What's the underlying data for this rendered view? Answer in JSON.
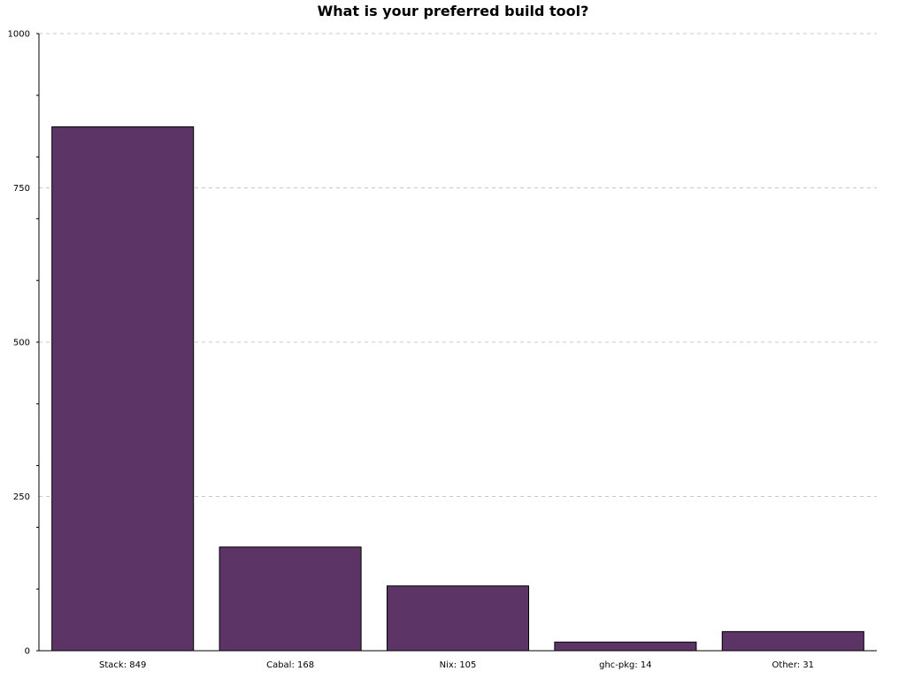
{
  "chart_data": {
    "type": "bar",
    "title": "What is your preferred build tool?",
    "categories": [
      "Stack: 849",
      "Cabal: 168",
      "Nix: 105",
      "ghc-pkg: 14",
      "Other: 31"
    ],
    "values": [
      849,
      168,
      105,
      14,
      31
    ],
    "xlabel": "",
    "ylabel": "",
    "ylim": [
      0,
      1000
    ],
    "yticks": [
      "0",
      "250",
      "500",
      "750",
      "1000"
    ],
    "grid": true,
    "bar_color": "#5c3566"
  }
}
